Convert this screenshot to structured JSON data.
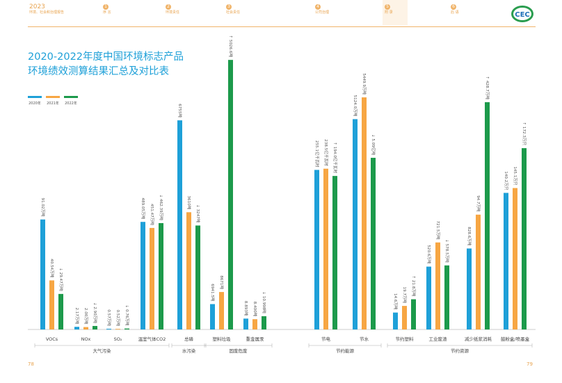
{
  "header": {
    "nav": [
      {
        "num": "2023",
        "label": "环境、社会和治理报告"
      },
      {
        "num": "1",
        "label": "序 言"
      },
      {
        "num": "2",
        "label": "环境责任"
      },
      {
        "num": "3",
        "label": "社会责任"
      },
      {
        "num": "4",
        "label": "公司治理"
      },
      {
        "num": "5",
        "label": "附 录"
      },
      {
        "num": "6",
        "label": "后 语"
      }
    ],
    "logo_text": "CEC",
    "accent_color": "#f0b46a"
  },
  "title_line1": "2020-2022年度中国环境标志产品",
  "title_line2": "环境绩效测算结果汇总及对比表",
  "legend": [
    "2020年",
    "2021年",
    "2022年"
  ],
  "colors": {
    "y2020": "#1ea0d8",
    "y2021": "#f7a643",
    "y2022": "#1c9a4b"
  },
  "chart_data": {
    "type": "bar",
    "series_names": [
      "2020年",
      "2021年",
      "2022年"
    ],
    "categories": [
      "VOCs",
      "NOx",
      "SO₂",
      "温室气体CO2",
      "总磷",
      "塑料垃圾",
      "重金属汞",
      "节电",
      "节水",
      "节约塑料",
      "工业废渣",
      "减少纸浆消耗",
      "鼓粉盒/喷墨盒"
    ],
    "values": [
      [
        91.0,
        40.6,
        29.4
      ],
      [
        2.2,
        2.0,
        2.9
      ],
      [
        0.6,
        0.5,
        0.8
      ],
      [
        89.0,
        84.0,
        88.0
      ],
      [
        173.0,
        97.0,
        86.0
      ],
      [
        21.0,
        31.0,
        223.0
      ],
      [
        9.0,
        8.5,
        11.0
      ],
      [
        132.0,
        133.0,
        127.0
      ],
      [
        174.0,
        192.0,
        142.0
      ],
      [
        14.0,
        19.5,
        25.0
      ],
      [
        52.0,
        72.0,
        53.0
      ],
      [
        67.0,
        95.0,
        188.0
      ],
      [
        113.0,
        117.0,
        150.0
      ]
    ],
    "bar_labels": [
      [
        "91.02万吨",
        "40.54万吨",
        "↓ 29.47万吨"
      ],
      [
        "2.17万吨",
        "2.00万吨",
        "↓ 2.90万吨"
      ],
      [
        "0.57万吨",
        "0.52万吨",
        "↓ 0.76万吨"
      ],
      [
        "489.05万吨",
        "451.47万吨",
        "↓ 462.39万吨"
      ],
      [
        "6755吨",
        "3610吨",
        "↓ 3247吨"
      ],
      [
        "6941.5吨",
        "8671吨",
        "↑ 5026.6吨"
      ],
      [
        "8.893吨",
        "8.400吨",
        "↓ 10.998吨"
      ],
      [
        "255.1亿千瓦时",
        "238.5亿千瓦时",
        "↑ 194.0亿千瓦时"
      ],
      [
        "5124.0万吨",
        "5449.9万吨",
        "↓ 5.09亿吨"
      ],
      [
        "14.6万吨",
        "19.7万吨",
        "↑ 21.8万吨"
      ],
      [
        "520.6万吨",
        "721.5万吨",
        "↓ 578.5万吨"
      ],
      [
        "828.6万吨",
        "94.7万吨",
        "↑ 428.7万吨"
      ],
      [
        "140.2万只",
        "145.1万只",
        "↑ 172.3万只"
      ]
    ],
    "groups": [
      {
        "label": "大气污染",
        "from": 0,
        "to": 3
      },
      {
        "label": "水污染",
        "from": 4,
        "to": 4
      },
      {
        "label": "固废危废",
        "from": 5,
        "to": 6
      },
      {
        "label": "节约能源",
        "from": 7,
        "to": 8
      },
      {
        "label": "节约资源",
        "from": 9,
        "to": 12
      }
    ],
    "ylim": [
      0,
      230
    ]
  },
  "footer": {
    "left_page": "78",
    "right_page": "79"
  }
}
